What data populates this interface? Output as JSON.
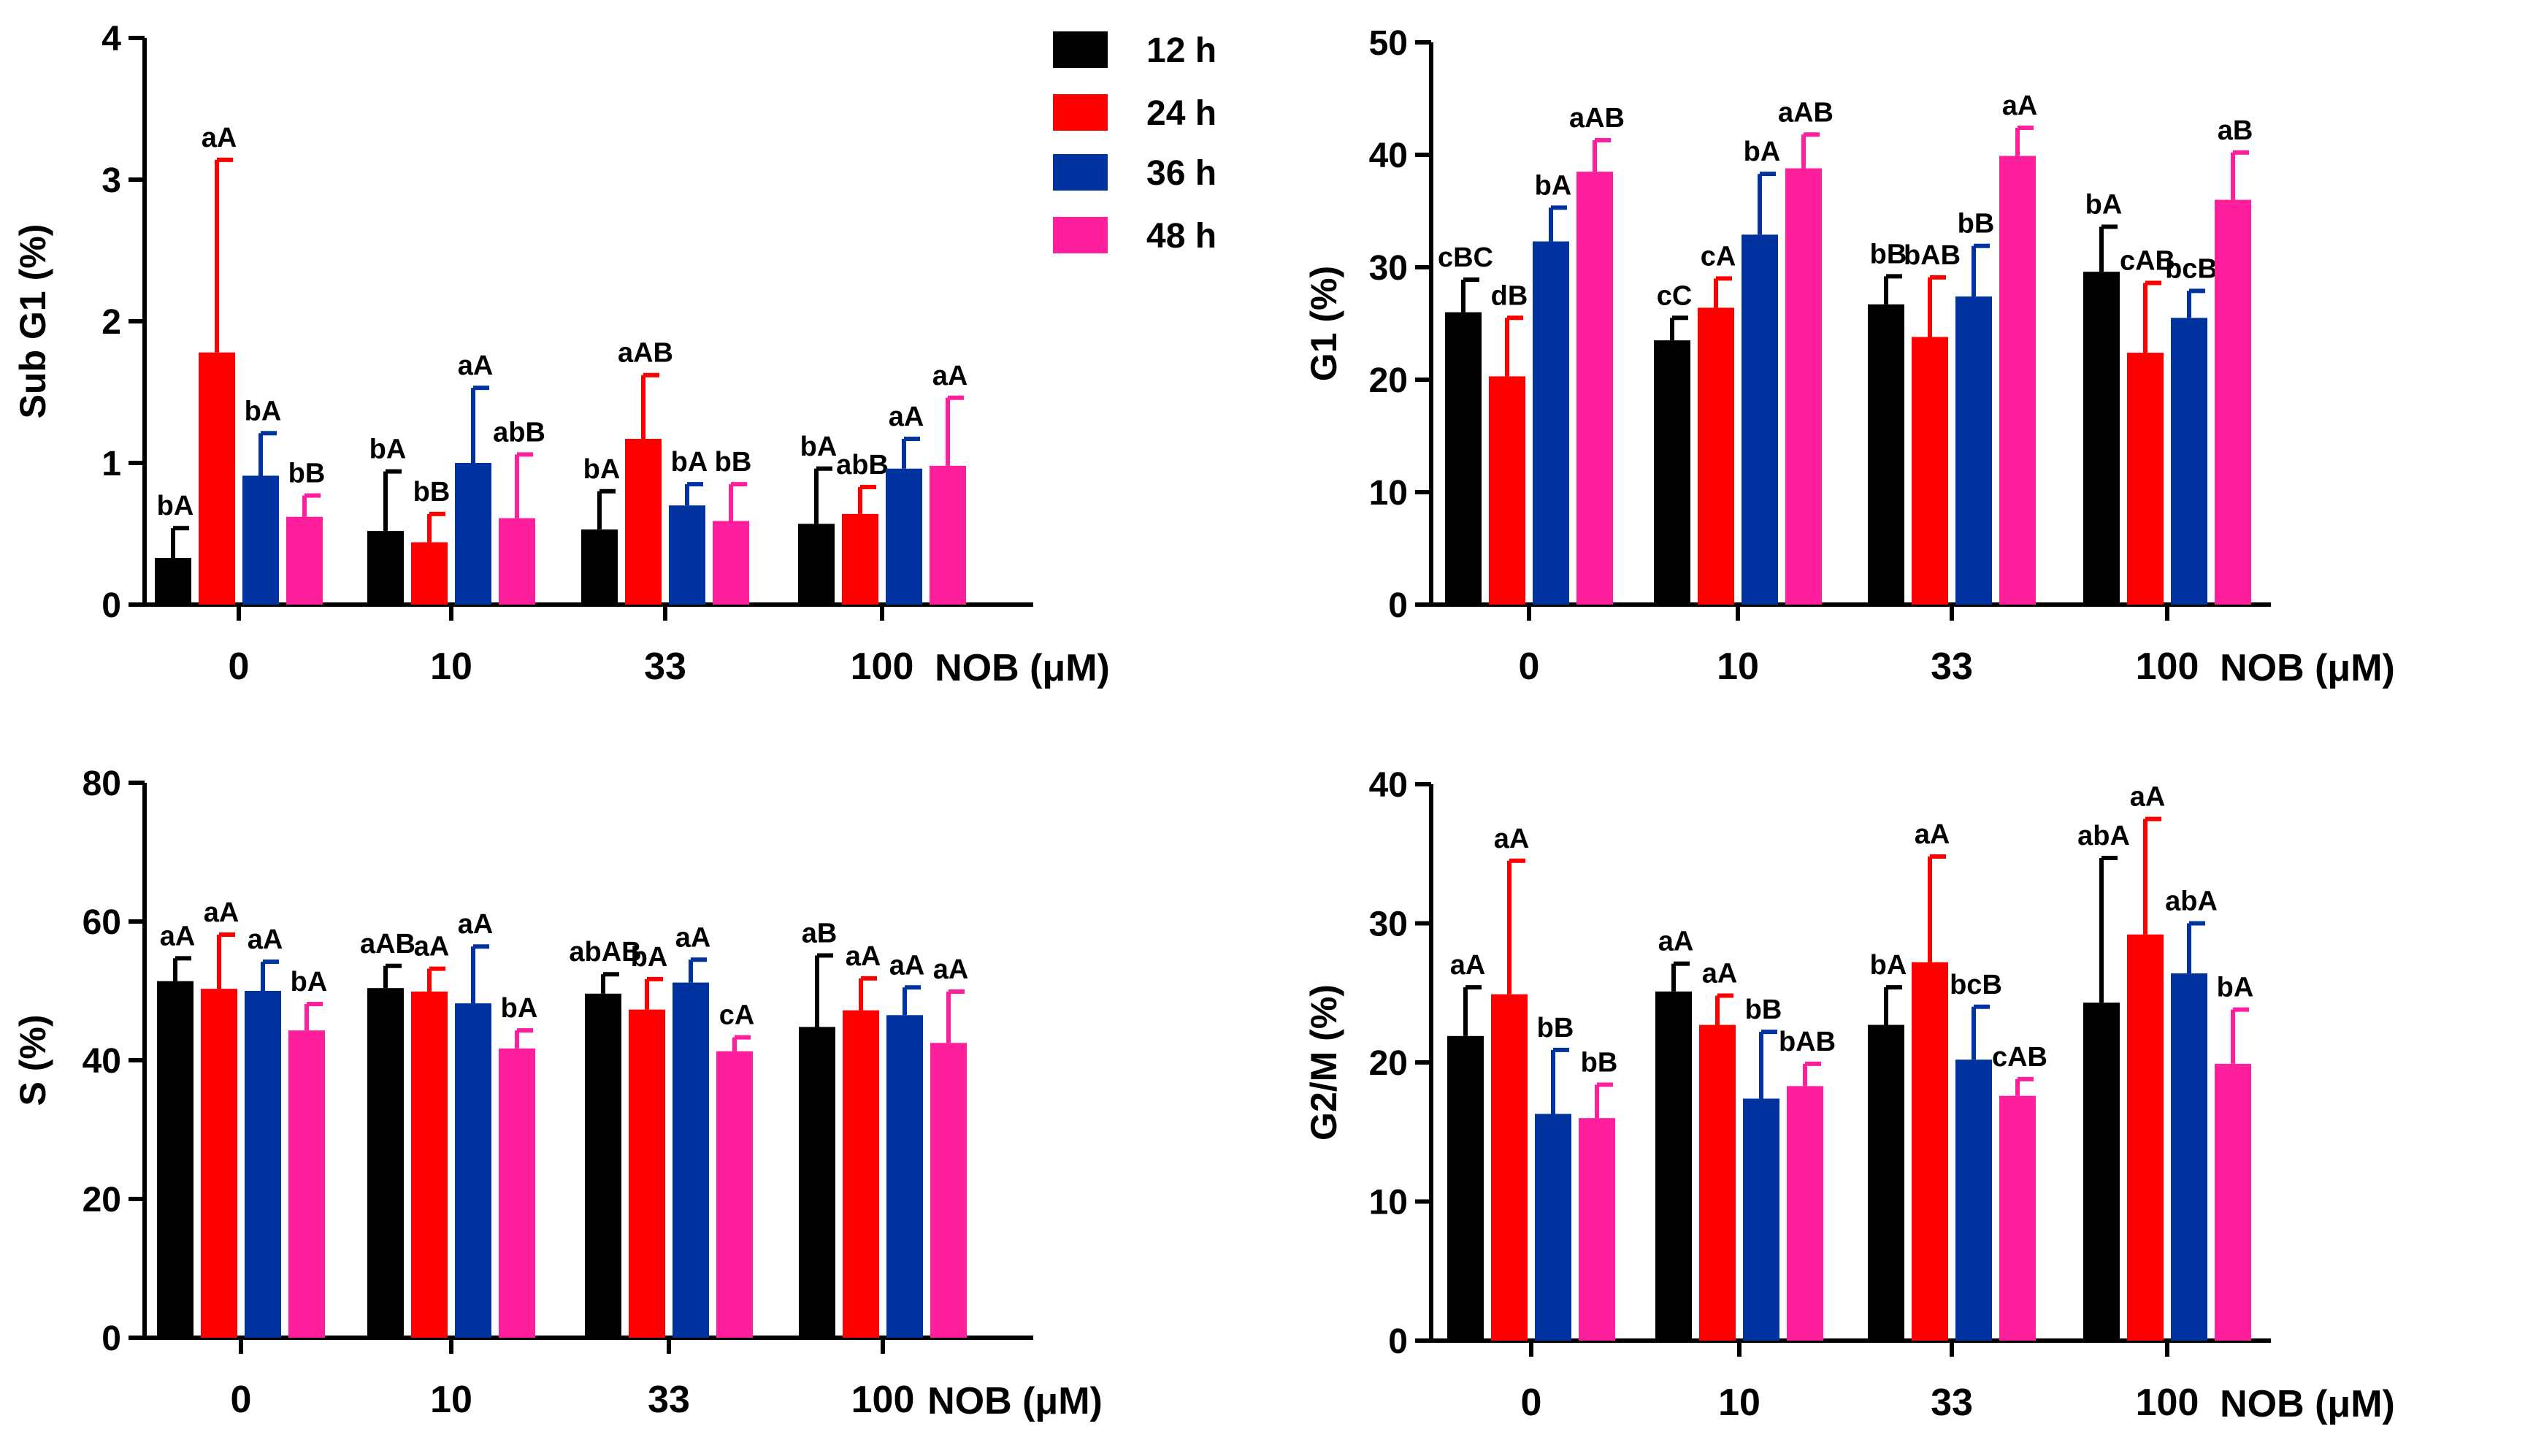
{
  "legend": {
    "items": [
      {
        "label": "12 h",
        "color": "#000000"
      },
      {
        "label": "24 h",
        "color": "#ff0000"
      },
      {
        "label": "36 h",
        "color": "#0033a0"
      },
      {
        "label": "48 h",
        "color": "#ff1f9c"
      }
    ]
  },
  "chart_data": [
    {
      "id": "subg1",
      "type": "bar",
      "ylabel": "Sub G1 (%)",
      "xlabel": "NOB (μM)",
      "ylim": [
        0,
        4
      ],
      "yticks": [
        "0",
        "1",
        "2",
        "3",
        "4"
      ],
      "categories": [
        "0",
        "10",
        "33",
        "100"
      ],
      "series": [
        {
          "name": "12 h",
          "values": [
            0.33,
            0.52,
            0.53,
            0.57
          ],
          "errors": [
            0.21,
            0.42,
            0.27,
            0.39
          ],
          "labels": [
            "bA",
            "bA",
            "bA",
            "bA"
          ]
        },
        {
          "name": "24 h",
          "values": [
            1.78,
            0.44,
            1.17,
            0.64
          ],
          "errors": [
            1.36,
            0.2,
            0.45,
            0.19
          ],
          "labels": [
            "aA",
            "bB",
            "aAB",
            "abB"
          ]
        },
        {
          "name": "36 h",
          "values": [
            0.91,
            1.0,
            0.7,
            0.96
          ],
          "errors": [
            0.3,
            0.53,
            0.15,
            0.21
          ],
          "labels": [
            "bA",
            "aA",
            "bA",
            "aA"
          ]
        },
        {
          "name": "48 h",
          "values": [
            0.62,
            0.61,
            0.59,
            0.98
          ],
          "errors": [
            0.15,
            0.45,
            0.26,
            0.48
          ],
          "labels": [
            "bB",
            "abB",
            "bB",
            "aA"
          ]
        }
      ]
    },
    {
      "id": "g1",
      "type": "bar",
      "ylabel": "G1 (%)",
      "xlabel": "NOB (μM)",
      "ylim": [
        0,
        50
      ],
      "yticks": [
        "0",
        "10",
        "20",
        "30",
        "40",
        "50"
      ],
      "categories": [
        "0",
        "10",
        "33",
        "100"
      ],
      "series": [
        {
          "name": "12 h",
          "values": [
            26.0,
            23.5,
            26.7,
            29.6
          ],
          "errors": [
            2.9,
            2.0,
            2.5,
            4.0
          ],
          "labels": [
            "cBC",
            "cC",
            "bB",
            "bA"
          ]
        },
        {
          "name": "24 h",
          "values": [
            20.3,
            26.4,
            23.8,
            22.4
          ],
          "errors": [
            5.2,
            2.6,
            5.3,
            6.2
          ],
          "labels": [
            "dB",
            "cA",
            "bAB",
            "cAB"
          ]
        },
        {
          "name": "36 h",
          "values": [
            32.3,
            32.9,
            27.4,
            25.5
          ],
          "errors": [
            3.0,
            5.4,
            4.5,
            2.4
          ],
          "labels": [
            "bA",
            "bA",
            "bB",
            "bcB"
          ]
        },
        {
          "name": "48 h",
          "values": [
            38.5,
            38.8,
            39.9,
            36.0
          ],
          "errors": [
            2.8,
            3.0,
            2.5,
            4.2
          ],
          "labels": [
            "aAB",
            "aAB",
            "aA",
            "aB"
          ]
        }
      ]
    },
    {
      "id": "s",
      "type": "bar",
      "ylabel": "S (%)",
      "xlabel": "NOB (μM)",
      "ylim": [
        0,
        80
      ],
      "yticks": [
        "0",
        "20",
        "40",
        "60",
        "80"
      ],
      "categories": [
        "0",
        "10",
        "33",
        "100"
      ],
      "series": [
        {
          "name": "12 h",
          "values": [
            51.4,
            50.4,
            49.6,
            44.8
          ],
          "errors": [
            3.3,
            3.2,
            2.8,
            10.3
          ],
          "labels": [
            "aA",
            "aAB",
            "abAB",
            "aB"
          ]
        },
        {
          "name": "24 h",
          "values": [
            50.3,
            49.9,
            47.3,
            47.2
          ],
          "errors": [
            7.8,
            3.3,
            4.4,
            4.6
          ],
          "labels": [
            "aA",
            "aA",
            "bA",
            "aA"
          ]
        },
        {
          "name": "36 h",
          "values": [
            50.0,
            48.2,
            51.2,
            46.5
          ],
          "errors": [
            4.2,
            8.2,
            3.3,
            4.0
          ],
          "labels": [
            "aA",
            "aA",
            "aA",
            "aA"
          ]
        },
        {
          "name": "48 h",
          "values": [
            44.3,
            41.7,
            41.3,
            42.5
          ],
          "errors": [
            3.8,
            2.6,
            2.0,
            7.4
          ],
          "labels": [
            "bA",
            "bA",
            "cA",
            "aA"
          ]
        }
      ]
    },
    {
      "id": "g2m",
      "type": "bar",
      "ylabel": "G2/M (%)",
      "xlabel": "NOB (μM)",
      "ylim": [
        0,
        40
      ],
      "yticks": [
        "0",
        "10",
        "20",
        "30",
        "40"
      ],
      "categories": [
        "0",
        "10",
        "33",
        "100"
      ],
      "series": [
        {
          "name": "12 h",
          "values": [
            21.9,
            25.1,
            22.7,
            24.3
          ],
          "errors": [
            3.5,
            2.0,
            2.7,
            10.4
          ],
          "labels": [
            "aA",
            "aA",
            "bA",
            "abA"
          ]
        },
        {
          "name": "24 h",
          "values": [
            24.9,
            22.7,
            27.2,
            29.2
          ],
          "errors": [
            9.6,
            2.1,
            7.6,
            8.3
          ],
          "labels": [
            "aA",
            "aA",
            "aA",
            "aA"
          ]
        },
        {
          "name": "36 h",
          "values": [
            16.3,
            17.4,
            20.2,
            26.4
          ],
          "errors": [
            4.6,
            4.8,
            3.8,
            3.6
          ],
          "labels": [
            "bB",
            "bB",
            "bcB",
            "abA"
          ]
        },
        {
          "name": "48 h",
          "values": [
            16.0,
            18.3,
            17.6,
            19.9
          ],
          "errors": [
            2.4,
            1.6,
            1.2,
            3.9
          ],
          "labels": [
            "bB",
            "bAB",
            "cAB",
            "bA"
          ]
        }
      ]
    }
  ]
}
